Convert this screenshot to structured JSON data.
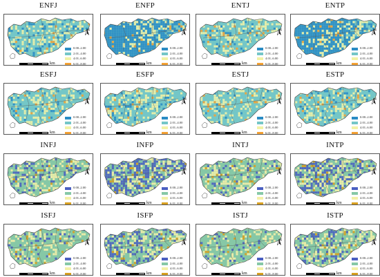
{
  "legend": [
    {
      "label": "0.00–2.00"
    },
    {
      "label": "2.01–4.00"
    },
    {
      "label": "4.01–6.00"
    },
    {
      "label": "6.01–8.00"
    },
    {
      "label": "8.01–10.00"
    }
  ],
  "north_label": "N",
  "scale": {
    "ticks": [
      "0",
      "5",
      "10"
    ],
    "unit": "km"
  },
  "palettes": {
    "warm": [
      "#2b8cc4",
      "#74c6c7",
      "#f2f2a6",
      "#f4a234",
      "#d7191c"
    ],
    "cool": [
      "#4a5fc1",
      "#86c8a6",
      "#f4f0a8",
      "#d8a020",
      "#a0522d"
    ]
  },
  "panels": [
    {
      "title": "ENFJ",
      "palette": "warm",
      "low_share": 0.1
    },
    {
      "title": "ENFP",
      "palette": "warm",
      "low_share": 0.7
    },
    {
      "title": "ENTJ",
      "palette": "warm",
      "low_share": 0.08
    },
    {
      "title": "ENTP",
      "palette": "warm",
      "low_share": 0.65
    },
    {
      "title": "ESFJ",
      "palette": "warm",
      "low_share": 0.06
    },
    {
      "title": "ESFP",
      "palette": "warm",
      "low_share": 0.12
    },
    {
      "title": "ESTJ",
      "palette": "warm",
      "low_share": 0.05
    },
    {
      "title": "ESTP",
      "palette": "warm",
      "low_share": 0.1
    },
    {
      "title": "INFJ",
      "palette": "cool",
      "low_share": 0.15
    },
    {
      "title": "INFP",
      "palette": "cool",
      "low_share": 0.4
    },
    {
      "title": "INTJ",
      "palette": "cool",
      "low_share": 0.08
    },
    {
      "title": "INTP",
      "palette": "cool",
      "low_share": 0.3
    },
    {
      "title": "ISFJ",
      "palette": "cool",
      "low_share": 0.06
    },
    {
      "title": "ISFP",
      "palette": "cool",
      "low_share": 0.25
    },
    {
      "title": "ISTJ",
      "palette": "cool",
      "low_share": 0.05
    },
    {
      "title": "ISTP",
      "palette": "cool",
      "low_share": 0.2
    }
  ]
}
